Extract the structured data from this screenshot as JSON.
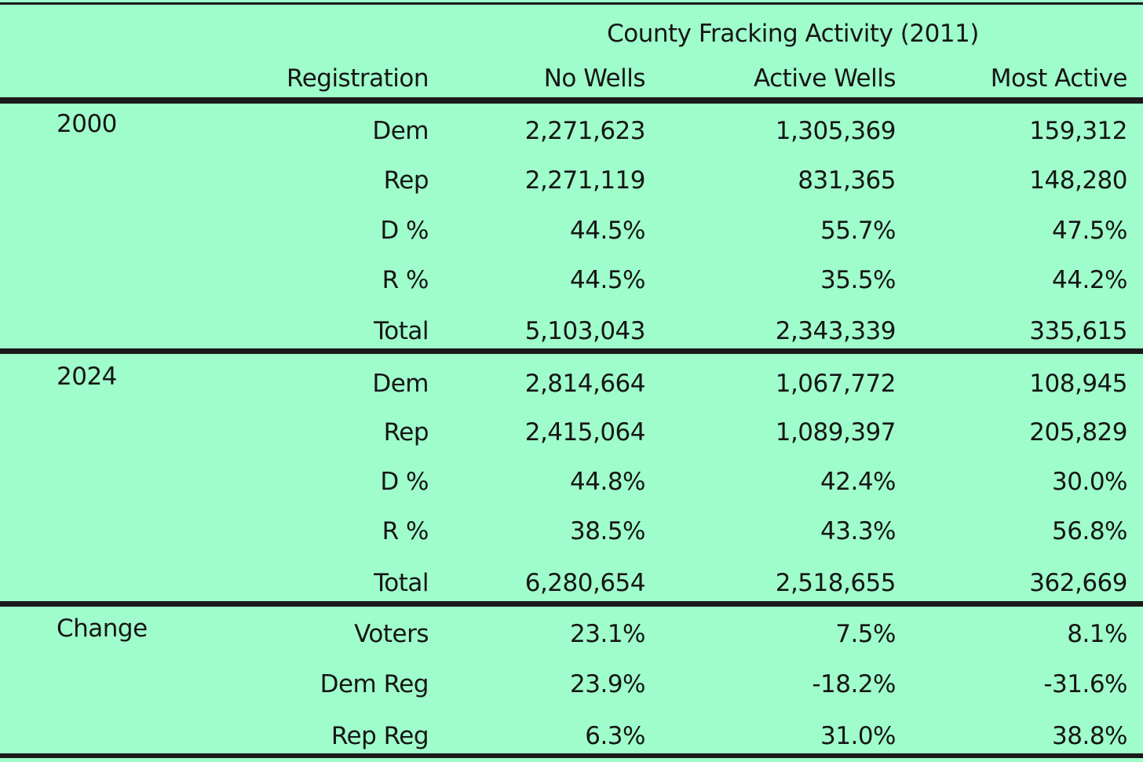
{
  "table": {
    "supertitle": "County Fracking Activity (2011)",
    "headers": [
      "Registration",
      "No Wells",
      "Active Wells",
      "Most Active"
    ],
    "groups": [
      {
        "label": "2000",
        "rows": [
          {
            "label": "Dem",
            "values": [
              "2,271,623",
              "1,305,369",
              "159,312"
            ]
          },
          {
            "label": "Rep",
            "values": [
              "2,271,119",
              "831,365",
              "148,280"
            ]
          },
          {
            "label": "D %",
            "values": [
              "44.5%",
              "55.7%",
              "47.5%"
            ]
          },
          {
            "label": "R %",
            "values": [
              "44.5%",
              "35.5%",
              "44.2%"
            ]
          },
          {
            "label": "Total",
            "values": [
              "5,103,043",
              "2,343,339",
              "335,615"
            ]
          }
        ]
      },
      {
        "label": "2024",
        "rows": [
          {
            "label": "Dem",
            "values": [
              "2,814,664",
              "1,067,772",
              "108,945"
            ]
          },
          {
            "label": "Rep",
            "values": [
              "2,415,064",
              "1,089,397",
              "205,829"
            ]
          },
          {
            "label": "D %",
            "values": [
              "44.8%",
              "42.4%",
              "30.0%"
            ]
          },
          {
            "label": "R %",
            "values": [
              "38.5%",
              "43.3%",
              "56.8%"
            ]
          },
          {
            "label": "Total",
            "values": [
              "6,280,654",
              "2,518,655",
              "362,669"
            ]
          }
        ]
      },
      {
        "label": "Change",
        "rows": [
          {
            "label": "Voters",
            "values": [
              "23.1%",
              "7.5%",
              "8.1%"
            ]
          },
          {
            "label": "Dem Reg",
            "values": [
              "23.9%",
              "-18.2%",
              "-31.6%"
            ]
          },
          {
            "label": "Rep Reg",
            "values": [
              "6.3%",
              "31.0%",
              "38.8%"
            ]
          }
        ]
      }
    ]
  }
}
